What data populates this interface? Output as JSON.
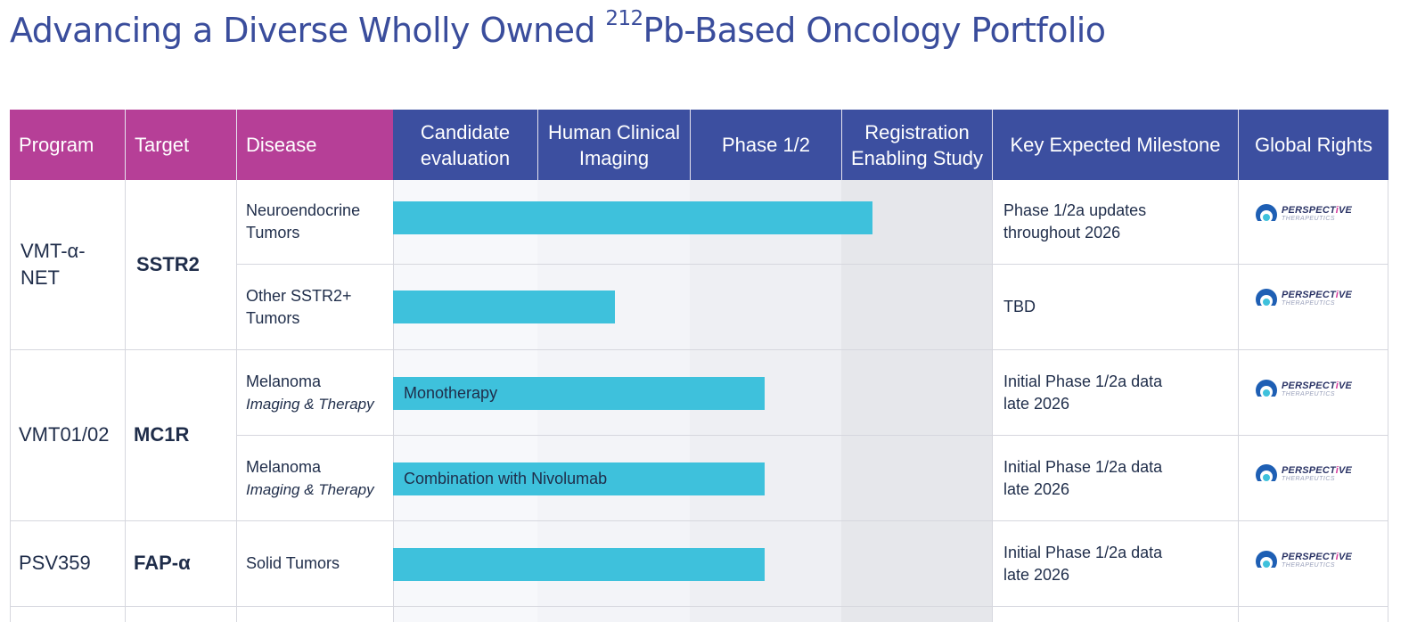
{
  "title": {
    "main": "Advancing a Diverse Wholly Owned ",
    "sup": "212",
    "rest": "Pb-Based Oncology Portfolio"
  },
  "headers": {
    "program": "Program",
    "target": "Target",
    "disease": "Disease",
    "candidate_line1": "Candidate",
    "candidate_line2": "evaluation",
    "imaging_line1": "Human Clinical",
    "imaging_line2": "Imaging",
    "phase": "Phase 1/2",
    "registration_line1": "Registration",
    "registration_line2": "Enabling Study",
    "milestone": "Key Expected Milestone",
    "rights": "Global Rights"
  },
  "programs": [
    {
      "name_line1": "VMT-α-",
      "name_line2": "NET",
      "target": "SSTR2"
    },
    {
      "name": "VMT01/02",
      "target": "MC1R"
    },
    {
      "name": "PSV359",
      "target": "FAP-α"
    }
  ],
  "rows": [
    {
      "disease_line1": "Neuroendocrine",
      "disease_line2": "Tumors",
      "bar_label": "",
      "progress": 0.8,
      "milestone_line1": "Phase 1/2a updates",
      "milestone_line2": "throughout 2026"
    },
    {
      "disease_line1": "Other SSTR2+",
      "disease_line2": "Tumors",
      "bar_label": "",
      "progress": 0.37,
      "milestone_line1": "TBD",
      "milestone_line2": ""
    },
    {
      "disease_line1": "Melanoma",
      "disease_line2": "Imaging & Therapy",
      "bar_label": "Monotherapy",
      "progress": 0.62,
      "milestone_line1": "Initial Phase 1/2a data",
      "milestone_line2": "late 2026"
    },
    {
      "disease_line1": "Melanoma",
      "disease_line2": "Imaging & Therapy",
      "bar_label": "Combination with Nivolumab",
      "progress": 0.62,
      "milestone_line1": "Initial Phase 1/2a data",
      "milestone_line2": "late 2026"
    },
    {
      "disease_line1": "Solid Tumors",
      "disease_line2": "",
      "bar_label": "",
      "progress": 0.62,
      "milestone_line1": "Initial Phase 1/2a data",
      "milestone_line2": "late 2026"
    }
  ],
  "rights_logo": {
    "line1_a": "PERSPECT",
    "line1_b": "i",
    "line1_c": "VE",
    "line2": "THERAPEUTICS"
  },
  "colors": {
    "pink": "#b63f97",
    "blue": "#3c4fa0",
    "bar": "#3ec1dc",
    "title": "#3a4d9c"
  }
}
